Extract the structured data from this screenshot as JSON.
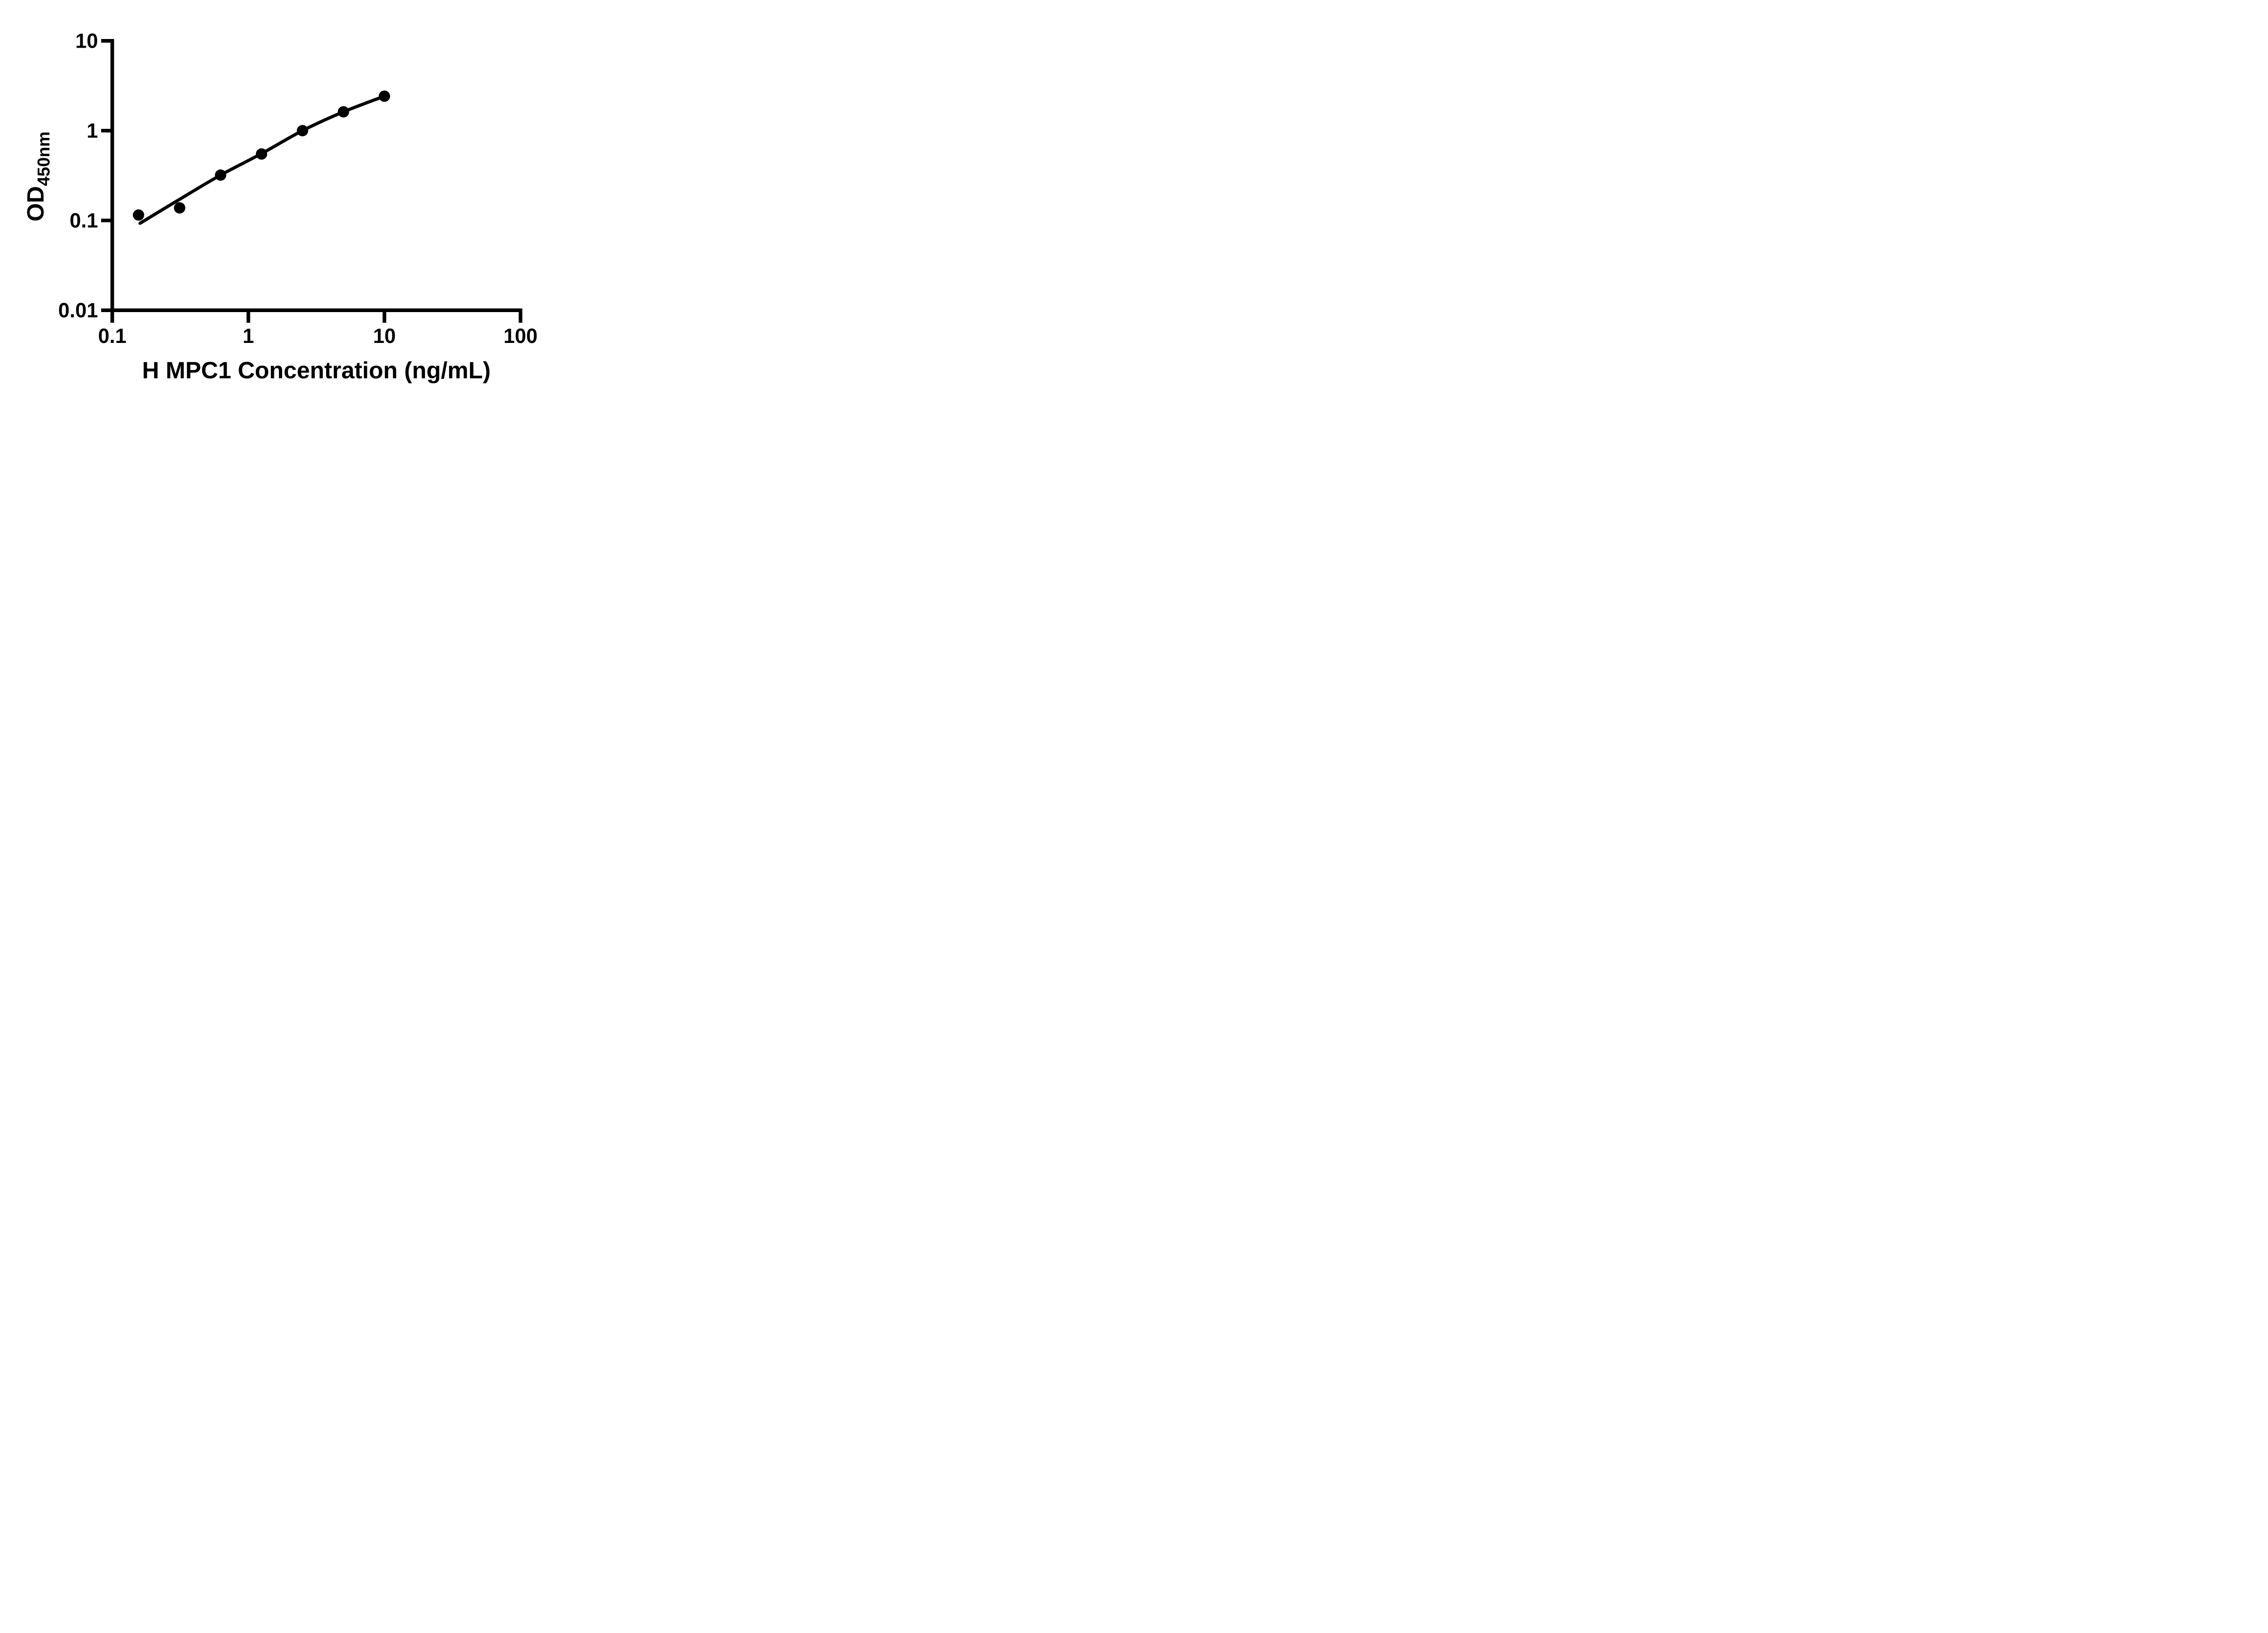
{
  "chart_data": {
    "type": "scatter",
    "title": "",
    "xlabel": "H MPC1 Concentration (ng/mL)",
    "ylabel": "OD450nm",
    "ylabel_main": "OD",
    "ylabel_sub": "450nm",
    "x_scale": "log10",
    "y_scale": "log10",
    "xlim": [
      0.1,
      100
    ],
    "ylim": [
      0.01,
      10
    ],
    "grid": false,
    "legend": false,
    "x_ticks": [
      {
        "value": 0.1,
        "label": "0.1"
      },
      {
        "value": 1,
        "label": "1"
      },
      {
        "value": 10,
        "label": "10"
      },
      {
        "value": 100,
        "label": "100"
      }
    ],
    "y_ticks": [
      {
        "value": 10,
        "label": "10"
      },
      {
        "value": 1,
        "label": "1"
      },
      {
        "value": 0.1,
        "label": "0.1"
      },
      {
        "value": 0.01,
        "label": "0.01"
      }
    ],
    "series": [
      {
        "marker": "circle",
        "color": "#000000",
        "points": [
          [
            0.156,
            0.115
          ],
          [
            0.3125,
            0.138
          ],
          [
            0.625,
            0.32
          ],
          [
            1.25,
            0.55
          ],
          [
            2.5,
            1.0
          ],
          [
            5,
            1.62
          ],
          [
            10,
            2.42
          ]
        ]
      }
    ],
    "fit_curve": {
      "color": "#000000",
      "points": [
        [
          0.16,
          0.093
        ],
        [
          0.3125,
          0.172
        ],
        [
          0.625,
          0.32
        ],
        [
          1.25,
          0.555
        ],
        [
          2.5,
          1.0
        ],
        [
          5,
          1.62
        ],
        [
          10,
          2.42
        ]
      ]
    }
  },
  "colors": {
    "ink": "#000000",
    "background": "#ffffff"
  }
}
